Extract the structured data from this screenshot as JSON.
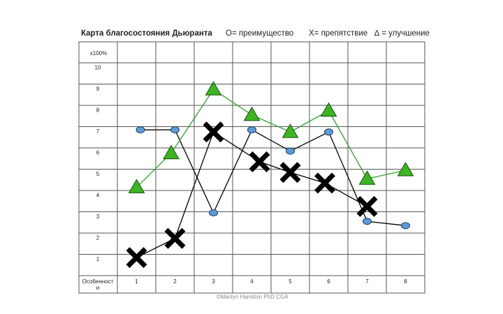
{
  "chart_data": {
    "type": "line",
    "title": "Карта благосостояния Дьюранта",
    "y_label": "x100%",
    "x_label": "Особенности",
    "credit": "©Marilyn Hamilton PhD CGA",
    "xlim": [
      0.5,
      8.5
    ],
    "xticks": [
      1,
      2,
      3,
      4,
      5,
      6,
      7,
      8
    ],
    "ylim": [
      0.25,
      10.25
    ],
    "yticks": [
      10,
      9,
      8,
      7,
      6,
      5,
      4,
      3,
      2,
      1
    ],
    "series": [
      {
        "name": "O= преимущество",
        "marker": "circle",
        "color": "#5b9bd5",
        "line_color": "#000000",
        "x": [
          1.1,
          2,
          3,
          4,
          5,
          6,
          7,
          8
        ],
        "values": [
          7.1,
          7.1,
          3.2,
          7.1,
          6.1,
          7,
          2.8,
          2.6
        ]
      },
      {
        "name": "X= препятствие",
        "marker": "x",
        "color": "#000000",
        "line_color": "#000000",
        "x": [
          1,
          2,
          3,
          4.2,
          5,
          5.9,
          7
        ],
        "values": [
          1.1,
          2,
          7,
          5.6,
          5.1,
          4.6,
          3.5
        ]
      },
      {
        "name": "∆ = улучшение",
        "marker": "triangle",
        "color": "#3cb521",
        "line_color": "#2e9e2e",
        "x": [
          1,
          1.9,
          3,
          4,
          5,
          6,
          7,
          8
        ],
        "values": [
          4.4,
          6,
          9,
          7.8,
          7,
          8,
          4.8,
          5.2
        ]
      }
    ]
  }
}
